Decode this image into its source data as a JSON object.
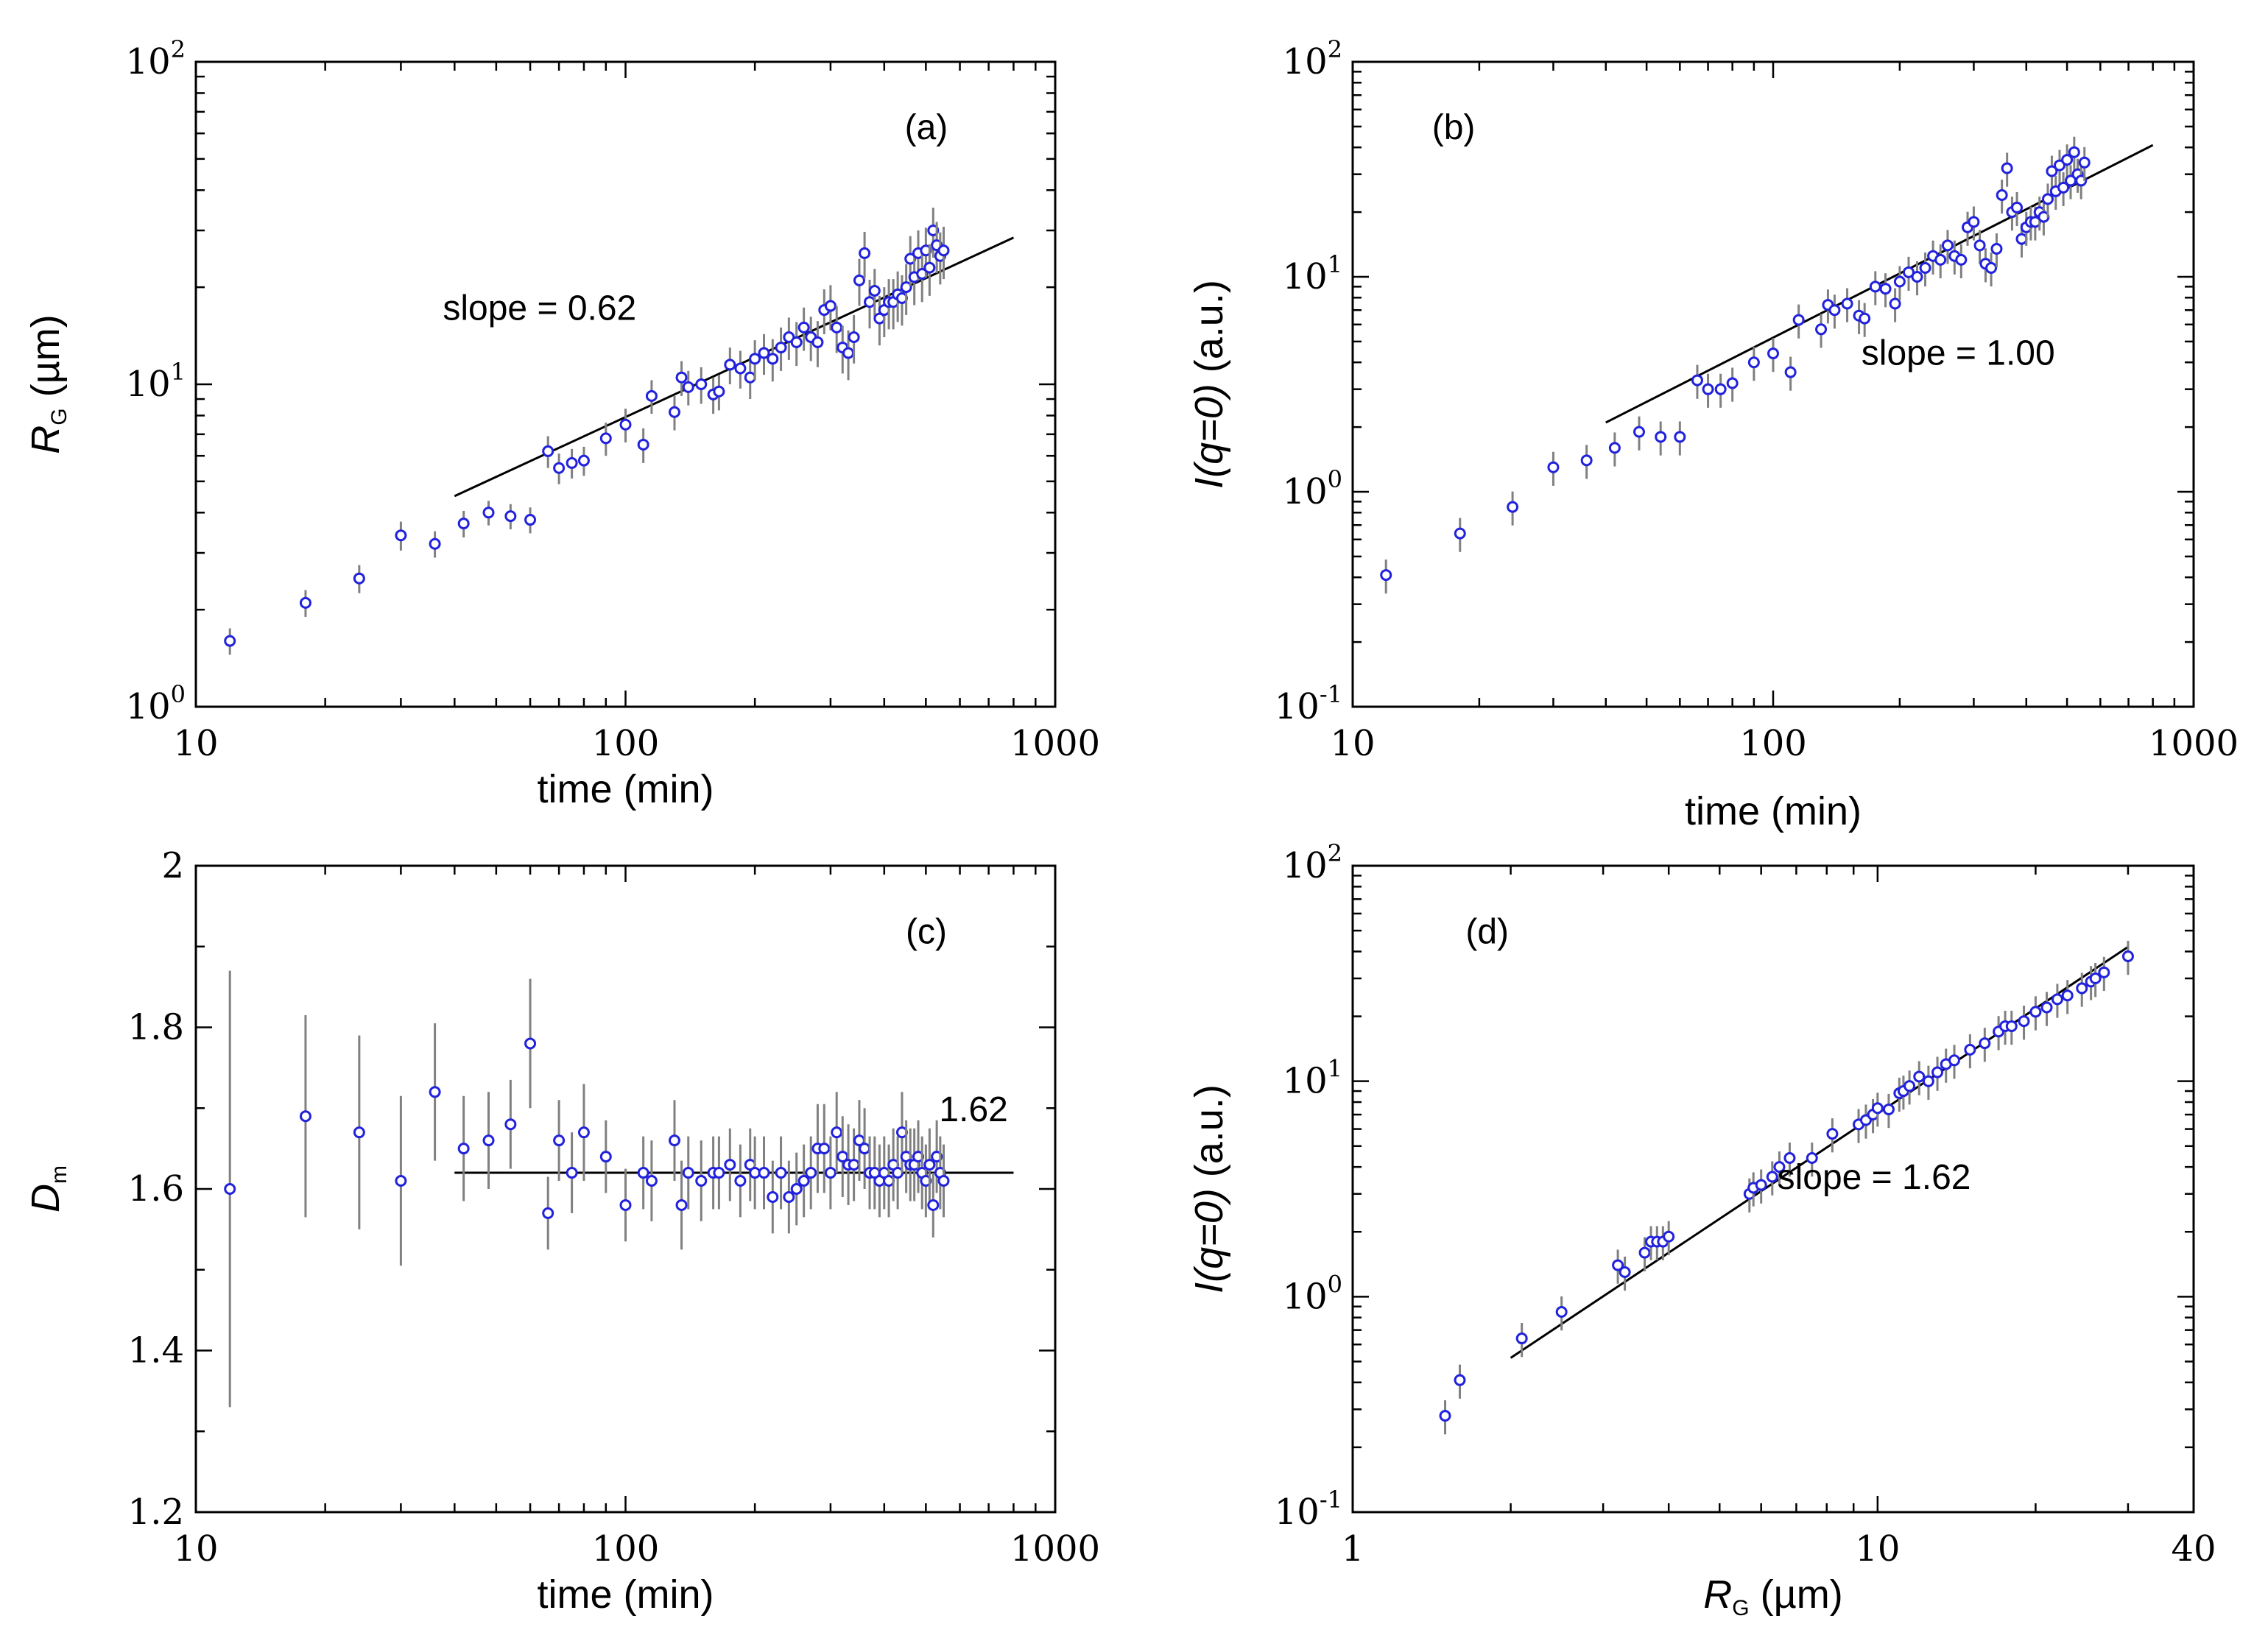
{
  "chart_data": [
    {
      "id": "a",
      "type": "scatter",
      "panel_label": "(a)",
      "xscale": "log",
      "yscale": "log",
      "xlim": [
        10,
        1000
      ],
      "ylim": [
        1,
        100
      ],
      "xlabel": "time (min)",
      "ylabel": {
        "main": "R",
        "sub": "G",
        "unit": " (µm)"
      },
      "xticks": [
        {
          "v": 10,
          "t": "10"
        },
        {
          "v": 100,
          "t": "100"
        },
        {
          "v": 1000,
          "t": "1000"
        }
      ],
      "yticks": [
        {
          "v": 1,
          "base": "10",
          "exp": "0"
        },
        {
          "v": 10,
          "base": "10",
          "exp": "1"
        },
        {
          "v": 100,
          "base": "10",
          "exp": "2"
        }
      ],
      "annotation": "slope = 0.62",
      "fit": {
        "x": [
          40,
          800
        ],
        "y": [
          4.5,
          28.5
        ]
      },
      "series": [
        {
          "name": "data",
          "x": [
            12,
            18,
            24,
            30,
            36,
            42,
            48,
            54,
            60,
            66,
            70,
            75,
            80,
            90,
            100,
            110,
            115,
            130,
            135,
            140,
            150,
            160,
            165,
            175,
            185,
            195,
            200,
            210,
            220,
            230,
            240,
            250,
            260,
            270,
            280,
            290,
            300,
            310,
            320,
            330,
            340,
            350,
            360,
            370,
            380,
            390,
            400,
            410,
            420,
            430,
            440,
            450,
            460,
            470,
            480,
            490,
            500,
            510,
            520,
            530,
            540,
            550
          ],
          "y": [
            1.6,
            2.1,
            2.5,
            3.4,
            3.2,
            3.7,
            4.0,
            3.9,
            3.8,
            6.2,
            5.5,
            5.7,
            5.8,
            6.8,
            7.5,
            6.5,
            9.2,
            8.2,
            10.5,
            9.8,
            10.0,
            9.3,
            9.5,
            11.5,
            11.2,
            10.5,
            12.0,
            12.5,
            12.0,
            13.0,
            14.0,
            13.5,
            15.0,
            14.0,
            13.5,
            17.0,
            17.5,
            15.0,
            13.0,
            12.5,
            14.0,
            21.0,
            25.5,
            18.0,
            19.5,
            16.0,
            17.0,
            18.0,
            18.0,
            19.0,
            18.5,
            20.0,
            24.5,
            21.5,
            25.5,
            22.0,
            26.0,
            23.0,
            30.0,
            27.0,
            25.0,
            26.0
          ],
          "err": [
            0.15,
            0.2,
            0.25,
            0.35,
            0.3,
            0.35,
            0.35,
            0.35,
            0.35,
            0.7,
            0.6,
            0.6,
            0.6,
            0.8,
            0.9,
            0.8,
            1.1,
            1.0,
            1.3,
            1.2,
            1.3,
            1.2,
            1.2,
            1.5,
            1.5,
            1.5,
            1.7,
            1.8,
            1.8,
            2.0,
            2.1,
            2.1,
            2.3,
            2.2,
            2.2,
            2.7,
            2.8,
            2.5,
            2.2,
            2.2,
            2.4,
            3.5,
            4.2,
            3.1,
            3.3,
            2.8,
            3.0,
            3.2,
            3.2,
            3.4,
            3.3,
            3.6,
            4.3,
            3.9,
            4.5,
            4.0,
            4.6,
            4.2,
            5.3,
            4.9,
            4.6,
            4.8
          ]
        }
      ]
    },
    {
      "id": "b",
      "type": "scatter",
      "panel_label": "(b)",
      "xscale": "log",
      "yscale": "log",
      "xlim": [
        10,
        1000
      ],
      "ylim": [
        0.1,
        100
      ],
      "xlabel": "time (min)",
      "ylabel": {
        "main": "I(q=0)",
        "sub": "",
        "unit": " (a.u.)"
      },
      "xticks": [
        {
          "v": 10,
          "t": "10"
        },
        {
          "v": 100,
          "t": "100"
        },
        {
          "v": 1000,
          "t": "1000"
        }
      ],
      "yticks": [
        {
          "v": 0.1,
          "base": "10",
          "exp": "-1"
        },
        {
          "v": 1,
          "base": "10",
          "exp": "0"
        },
        {
          "v": 10,
          "base": "10",
          "exp": "1"
        },
        {
          "v": 100,
          "base": "10",
          "exp": "2"
        }
      ],
      "annotation": "slope = 1.00",
      "fit": {
        "x": [
          40,
          800
        ],
        "y": [
          2.1,
          41
        ]
      },
      "series": [
        {
          "name": "data",
          "x": [
            12,
            18,
            24,
            30,
            36,
            42,
            48,
            54,
            60,
            66,
            70,
            75,
            80,
            90,
            100,
            110,
            115,
            130,
            135,
            140,
            150,
            160,
            165,
            175,
            185,
            195,
            200,
            210,
            220,
            230,
            240,
            250,
            260,
            270,
            280,
            290,
            300,
            310,
            320,
            330,
            340,
            350,
            360,
            370,
            380,
            390,
            400,
            410,
            420,
            430,
            440,
            450,
            460,
            470,
            480,
            490,
            500,
            510,
            520,
            530,
            540,
            550
          ],
          "y": [
            0.41,
            0.64,
            0.85,
            1.3,
            1.4,
            1.6,
            1.9,
            1.8,
            1.8,
            3.3,
            3.0,
            3.0,
            3.2,
            4.0,
            4.4,
            3.6,
            6.3,
            5.7,
            7.4,
            7.0,
            7.5,
            6.6,
            6.4,
            9.0,
            8.8,
            7.5,
            9.5,
            10.5,
            10.0,
            11.0,
            12.5,
            12.0,
            14.0,
            12.5,
            12.0,
            17.0,
            18.0,
            14.0,
            11.5,
            11.0,
            13.5,
            24.0,
            32.0,
            20.0,
            21.0,
            15.0,
            17.0,
            18.0,
            18.0,
            20.0,
            19.0,
            23.0,
            31.0,
            25.0,
            33.0,
            26.0,
            35.0,
            28.0,
            38.0,
            30.0,
            28.0,
            34.0
          ]
        }
      ]
    },
    {
      "id": "c",
      "type": "scatter",
      "panel_label": "(c)",
      "xscale": "log",
      "yscale": "linear",
      "xlim": [
        10,
        1000
      ],
      "ylim": [
        1.2,
        2.0
      ],
      "xlabel": "time (min)",
      "ylabel": {
        "main": "D",
        "sub": "m",
        "unit": ""
      },
      "xticks": [
        {
          "v": 10,
          "t": "10"
        },
        {
          "v": 100,
          "t": "100"
        },
        {
          "v": 1000,
          "t": "1000"
        }
      ],
      "yticks": [
        {
          "v": 1.2,
          "t": "1.2"
        },
        {
          "v": 1.4,
          "t": "1.4"
        },
        {
          "v": 1.6,
          "t": "1.6"
        },
        {
          "v": 1.8,
          "t": "1.8"
        },
        {
          "v": 2.0,
          "t": "2"
        }
      ],
      "annotation": "1.62",
      "fit": {
        "x": [
          40,
          800
        ],
        "y": [
          1.62,
          1.62
        ]
      },
      "series": [
        {
          "name": "data",
          "x": [
            12,
            18,
            24,
            30,
            36,
            42,
            48,
            54,
            60,
            66,
            70,
            75,
            80,
            90,
            100,
            110,
            115,
            130,
            135,
            140,
            150,
            160,
            165,
            175,
            185,
            195,
            200,
            210,
            220,
            230,
            240,
            250,
            260,
            270,
            280,
            290,
            300,
            310,
            320,
            330,
            340,
            350,
            360,
            370,
            380,
            390,
            400,
            410,
            420,
            430,
            440,
            450,
            460,
            470,
            480,
            490,
            500,
            510,
            520,
            530,
            540,
            550
          ],
          "y": [
            1.6,
            1.69,
            1.67,
            1.61,
            1.72,
            1.65,
            1.66,
            1.68,
            1.78,
            1.57,
            1.66,
            1.62,
            1.67,
            1.64,
            1.58,
            1.62,
            1.61,
            1.66,
            1.58,
            1.62,
            1.61,
            1.62,
            1.62,
            1.63,
            1.61,
            1.63,
            1.62,
            1.62,
            1.59,
            1.62,
            1.59,
            1.6,
            1.61,
            1.62,
            1.65,
            1.65,
            1.62,
            1.67,
            1.64,
            1.63,
            1.63,
            1.66,
            1.65,
            1.62,
            1.62,
            1.61,
            1.62,
            1.61,
            1.63,
            1.62,
            1.67,
            1.64,
            1.63,
            1.63,
            1.64,
            1.62,
            1.61,
            1.63,
            1.58,
            1.64,
            1.62,
            1.61
          ],
          "err": [
            0.27,
            0.125,
            0.12,
            0.105,
            0.085,
            0.065,
            0.06,
            0.055,
            0.08,
            0.045,
            0.05,
            0.05,
            0.06,
            0.045,
            0.045,
            0.045,
            0.05,
            0.05,
            0.055,
            0.045,
            0.05,
            0.045,
            0.045,
            0.045,
            0.045,
            0.045,
            0.045,
            0.045,
            0.045,
            0.045,
            0.045,
            0.045,
            0.045,
            0.045,
            0.055,
            0.055,
            0.045,
            0.05,
            0.05,
            0.05,
            0.045,
            0.05,
            0.05,
            0.045,
            0.045,
            0.045,
            0.045,
            0.045,
            0.045,
            0.045,
            0.05,
            0.045,
            0.045,
            0.045,
            0.045,
            0.045,
            0.045,
            0.045,
            0.04,
            0.045,
            0.045,
            0.045
          ]
        }
      ]
    },
    {
      "id": "d",
      "type": "scatter",
      "panel_label": "(d)",
      "xscale": "log",
      "yscale": "log",
      "xlim": [
        1,
        40
      ],
      "ylim": [
        0.1,
        100
      ],
      "xlabel": {
        "main": "R",
        "sub": "G",
        "unit": " (µm)"
      },
      "ylabel": {
        "main": "I(q=0)",
        "sub": "",
        "unit": " (a.u.)"
      },
      "xticks": [
        {
          "v": 1,
          "t": "1"
        },
        {
          "v": 10,
          "t": "10"
        },
        {
          "v": 40,
          "t": "40"
        }
      ],
      "yticks": [
        {
          "v": 0.1,
          "base": "10",
          "exp": "-1"
        },
        {
          "v": 1,
          "base": "10",
          "exp": "0"
        },
        {
          "v": 10,
          "base": "10",
          "exp": "1"
        },
        {
          "v": 100,
          "base": "10",
          "exp": "2"
        }
      ],
      "annotation": "slope = 1.62",
      "fit": {
        "x": [
          2,
          30
        ],
        "y": [
          0.52,
          42
        ]
      },
      "series": [
        {
          "name": "data",
          "x": [
            1.5,
            1.6,
            2.1,
            2.5,
            3.2,
            3.3,
            3.6,
            3.7,
            3.8,
            3.9,
            4.0,
            5.7,
            5.8,
            6.0,
            6.3,
            6.5,
            6.8,
            7.5,
            8.2,
            9.2,
            9.5,
            9.8,
            10.0,
            10.5,
            11.0,
            11.2,
            11.5,
            12.0,
            12.5,
            13.0,
            13.5,
            14.0,
            15.0,
            16.0,
            17.0,
            17.5,
            18.0,
            19.0,
            20.0,
            21.0,
            22.0,
            23.0,
            24.5,
            25.5,
            26.0,
            27.0,
            30.0
          ],
          "y": [
            0.28,
            0.41,
            0.64,
            0.85,
            1.4,
            1.3,
            1.6,
            1.8,
            1.8,
            1.8,
            1.9,
            3.0,
            3.2,
            3.3,
            3.6,
            4.0,
            4.4,
            4.4,
            5.7,
            6.3,
            6.6,
            7.0,
            7.5,
            7.4,
            8.8,
            9.0,
            9.5,
            10.5,
            10.0,
            11.0,
            12.0,
            12.5,
            14.0,
            15.0,
            17.0,
            18.0,
            18.0,
            19.0,
            21.0,
            22.0,
            24.0,
            25.0,
            27.0,
            29.0,
            30.0,
            32.0,
            38.0
          ]
        }
      ]
    }
  ]
}
